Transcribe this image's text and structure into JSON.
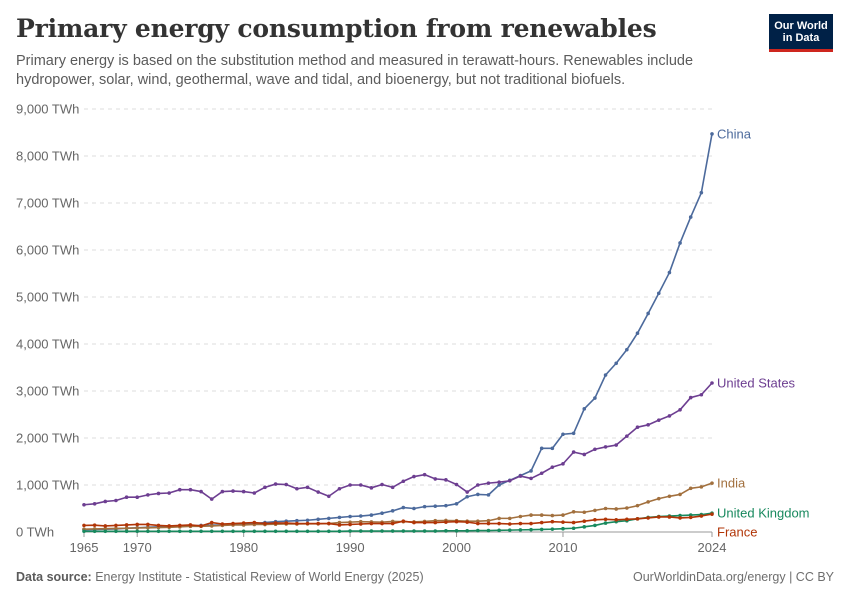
{
  "title": "Primary energy consumption from renewables",
  "subtitle": "Primary energy is based on the substitution method and measured in terawatt-hours. Renewables include hydropower, solar, wind, geothermal, wave and tidal, and bioenergy, but not traditional biofuels.",
  "logo": {
    "line1": "Our World",
    "line2": "in Data"
  },
  "footer": {
    "source_label": "Data source:",
    "source_text": "Energy Institute - Statistical Review of World Energy (2025)",
    "right": "OurWorldinData.org/energy | CC BY"
  },
  "chart_data": {
    "type": "line",
    "title": "Primary energy consumption from renewables",
    "xlim": [
      1965,
      2024
    ],
    "ylim": [
      0,
      9000
    ],
    "grid": true,
    "legend": "right-end-labels",
    "x_ticks": [
      "1965",
      "1970",
      "1980",
      "1990",
      "2000",
      "2010",
      "2024"
    ],
    "x_tick_values": [
      1965,
      1970,
      1980,
      1990,
      2000,
      2010,
      2024
    ],
    "y_ticks": [
      "0 TWh",
      "1,000 TWh",
      "2,000 TWh",
      "3,000 TWh",
      "4,000 TWh",
      "5,000 TWh",
      "6,000 TWh",
      "7,000 TWh",
      "8,000 TWh",
      "9,000 TWh"
    ],
    "y_tick_values": [
      0,
      1000,
      2000,
      3000,
      4000,
      5000,
      6000,
      7000,
      8000,
      9000
    ],
    "start_year": 1965,
    "series": [
      {
        "name": "China",
        "color": "#4c6a9c",
        "values": [
          50,
          55,
          60,
          65,
          80,
          90,
          100,
          110,
          110,
          120,
          130,
          140,
          145,
          150,
          160,
          170,
          180,
          200,
          220,
          230,
          240,
          250,
          270,
          290,
          310,
          330,
          340,
          360,
          400,
          450,
          520,
          500,
          540,
          550,
          560,
          600,
          750,
          800,
          790,
          1000,
          1100,
          1200,
          1300,
          1780,
          1780,
          2080,
          2100,
          2620,
          2850,
          3340,
          3590,
          3880,
          4230,
          4650,
          5080,
          5520,
          6150,
          6700,
          7220,
          8470
        ]
      },
      {
        "name": "United States",
        "color": "#6d3e91",
        "values": [
          580,
          600,
          650,
          670,
          740,
          740,
          790,
          820,
          830,
          900,
          900,
          860,
          700,
          860,
          870,
          860,
          830,
          950,
          1020,
          1010,
          920,
          950,
          850,
          760,
          920,
          1000,
          1000,
          940,
          1010,
          950,
          1080,
          1180,
          1220,
          1130,
          1110,
          1010,
          850,
          1000,
          1040,
          1060,
          1090,
          1190,
          1140,
          1250,
          1380,
          1450,
          1700,
          1650,
          1760,
          1810,
          1850,
          2040,
          2230,
          2280,
          2380,
          2470,
          2600,
          2860,
          2920,
          3170
        ]
      },
      {
        "name": "India",
        "color": "#a2703e",
        "values": [
          60,
          65,
          70,
          75,
          80,
          85,
          90,
          95,
          100,
          110,
          120,
          120,
          130,
          140,
          150,
          150,
          160,
          160,
          165,
          170,
          170,
          175,
          175,
          180,
          200,
          210,
          220,
          215,
          210,
          225,
          220,
          215,
          225,
          240,
          245,
          240,
          230,
          230,
          240,
          290,
          290,
          330,
          360,
          360,
          350,
          360,
          430,
          420,
          460,
          500,
          490,
          510,
          560,
          640,
          710,
          760,
          800,
          930,
          960,
          1040
        ]
      },
      {
        "name": "United Kingdom",
        "color": "#18895e",
        "values": [
          15,
          15,
          15,
          15,
          15,
          15,
          15,
          15,
          15,
          15,
          15,
          15,
          15,
          15,
          15,
          15,
          15,
          15,
          15,
          15,
          15,
          15,
          15,
          15,
          15,
          20,
          20,
          20,
          20,
          20,
          20,
          20,
          20,
          20,
          25,
          25,
          25,
          30,
          30,
          35,
          40,
          45,
          50,
          55,
          60,
          70,
          80,
          110,
          140,
          190,
          220,
          240,
          280,
          310,
          330,
          340,
          350,
          360,
          370,
          400
        ]
      },
      {
        "name": "France",
        "color": "#b13507",
        "values": [
          140,
          145,
          130,
          140,
          150,
          160,
          160,
          140,
          130,
          140,
          150,
          130,
          200,
          170,
          180,
          190,
          200,
          180,
          190,
          190,
          180,
          180,
          180,
          180,
          150,
          160,
          170,
          180,
          180,
          180,
          230,
          200,
          200,
          200,
          210,
          220,
          210,
          180,
          180,
          180,
          170,
          180,
          180,
          200,
          220,
          210,
          200,
          230,
          260,
          270,
          260,
          270,
          280,
          300,
          320,
          320,
          300,
          310,
          340,
          380
        ]
      }
    ]
  }
}
